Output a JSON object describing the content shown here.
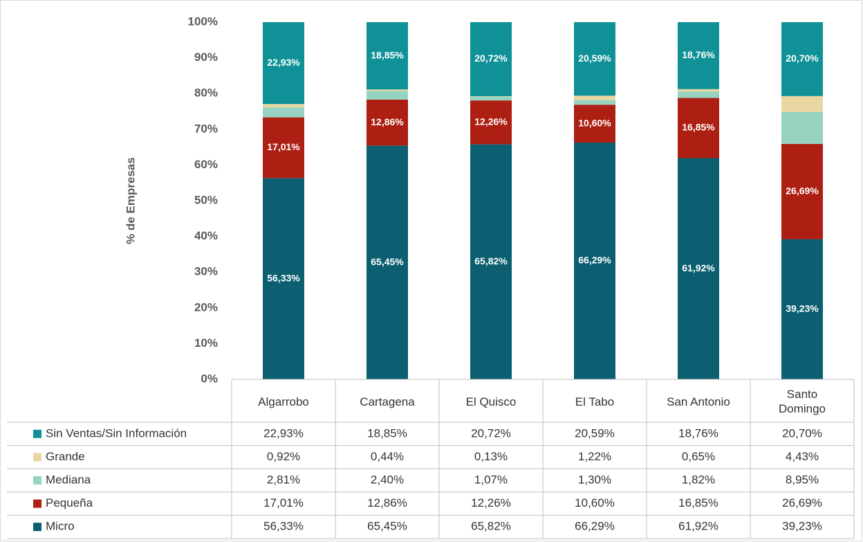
{
  "chart_data": {
    "type": "stacked_bar",
    "y_label": "% de Empresas",
    "categories": [
      "Algarrobo",
      "Cartagena",
      "El Quisco",
      "El Tabo",
      "San Antonio",
      "Santo Domingo"
    ],
    "ylim": [
      0,
      100
    ],
    "yticks": [
      {
        "value": 0,
        "label": "0%"
      },
      {
        "value": 10,
        "label": "10%"
      },
      {
        "value": 20,
        "label": "20%"
      },
      {
        "value": 30,
        "label": "30%"
      },
      {
        "value": 40,
        "label": "40%"
      },
      {
        "value": 50,
        "label": "50%"
      },
      {
        "value": 60,
        "label": "60%"
      },
      {
        "value": 70,
        "label": "70%"
      },
      {
        "value": 80,
        "label": "80%"
      },
      {
        "value": 90,
        "label": "90%"
      },
      {
        "value": 100,
        "label": "100%"
      }
    ],
    "series": [
      {
        "name": "Micro",
        "color": "#0b5f70",
        "show_labels": true,
        "values": [
          56.33,
          65.45,
          65.82,
          66.29,
          61.92,
          39.23
        ],
        "value_labels": [
          "56,33%",
          "65,45%",
          "65,82%",
          "66,29%",
          "61,92%",
          "39,23%"
        ]
      },
      {
        "name": "Pequeña",
        "color": "#ad1f12",
        "show_labels": true,
        "values": [
          17.01,
          12.86,
          12.26,
          10.6,
          16.85,
          26.69
        ],
        "value_labels": [
          "17,01%",
          "12,86%",
          "12,26%",
          "10,60%",
          "16,85%",
          "26,69%"
        ]
      },
      {
        "name": "Mediana",
        "color": "#96d3c0",
        "show_labels": false,
        "values": [
          2.81,
          2.4,
          1.07,
          1.3,
          1.82,
          8.95
        ],
        "value_labels": [
          "2,81%",
          "2,40%",
          "1,07%",
          "1,30%",
          "1,82%",
          "8,95%"
        ]
      },
      {
        "name": "Grande",
        "color": "#e9d6a1",
        "show_labels": false,
        "values": [
          0.92,
          0.44,
          0.13,
          1.22,
          0.65,
          4.43
        ],
        "value_labels": [
          "0,92%",
          "0,44%",
          "0,13%",
          "1,22%",
          "0,65%",
          "4,43%"
        ]
      },
      {
        "name": "Sin Ventas/Sin Información",
        "color": "#0f9197",
        "show_labels": true,
        "values": [
          22.93,
          18.85,
          20.72,
          20.59,
          18.76,
          20.7
        ],
        "value_labels": [
          "22,93%",
          "18,85%",
          "20,72%",
          "20,59%",
          "18,76%",
          "20,70%"
        ]
      }
    ]
  }
}
